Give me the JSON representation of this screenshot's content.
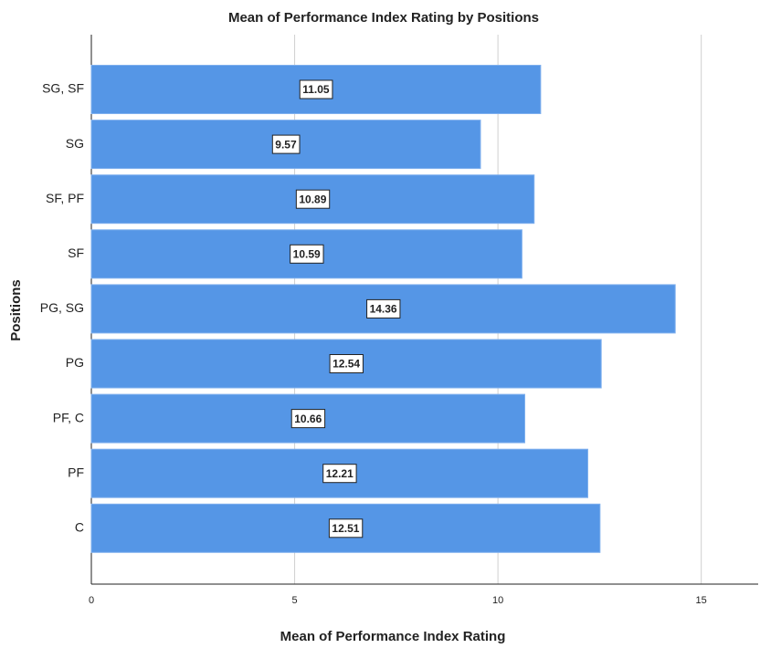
{
  "chart_data": {
    "type": "bar",
    "orientation": "horizontal",
    "title": "Mean of Performance Index Rating by Positions",
    "xlabel": "Mean of Performance Index Rating",
    "ylabel": "Positions",
    "categories": [
      "SG, SF",
      "SG",
      "SF, PF",
      "SF",
      "PG, SG",
      "PG",
      "PF, C",
      "PF",
      "C"
    ],
    "values": [
      11.05,
      9.57,
      10.89,
      10.59,
      14.36,
      12.54,
      10.66,
      12.21,
      12.51
    ],
    "color": "#5596e6",
    "xlim": [
      0,
      16.4
    ],
    "xticks": [
      0,
      5,
      10,
      15
    ],
    "grid": true
  }
}
